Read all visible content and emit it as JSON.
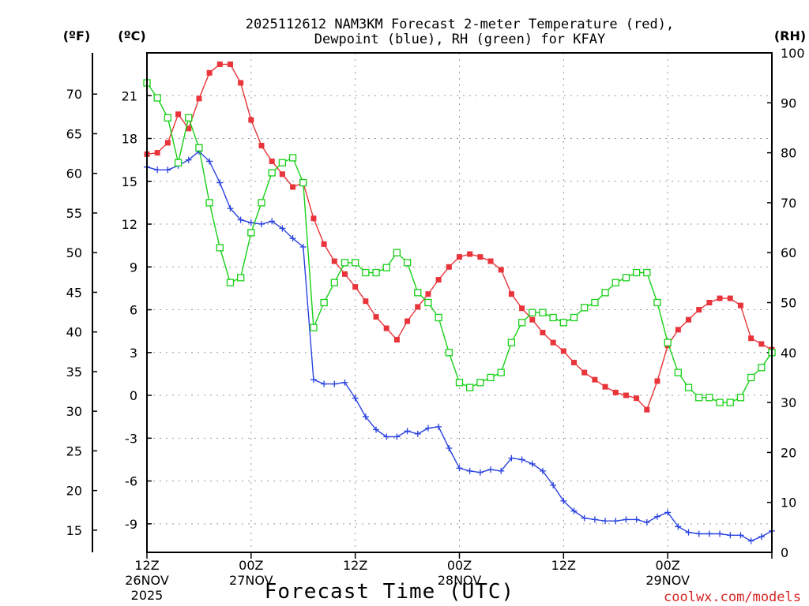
{
  "chart_data": {
    "type": "line",
    "title_line1": "2025112612 NAM3KM Forecast 2-meter Temperature (red),",
    "title_line2": "Dewpoint (blue), RH (green) for KFAY",
    "xlabel": "Forecast Time (UTC)",
    "credit": "coolwx.com/models",
    "unit_f": "(ºF)",
    "unit_c": "(ºC)",
    "unit_rh": "(RH)",
    "x_range_hours": [
      0,
      36
    ],
    "y_celsius_range": [
      -11,
      24
    ],
    "y_rh_range": [
      0,
      100
    ],
    "x_ticks": [
      {
        "hour": 0,
        "line1": "12Z",
        "line2": "26NOV",
        "line3": "2025"
      },
      {
        "hour": 6,
        "line1": "00Z",
        "line2": "27NOV",
        "line3": ""
      },
      {
        "hour": 12,
        "line1": "12Z",
        "line2": "",
        "line3": ""
      },
      {
        "hour": 18,
        "line1": "00Z",
        "line2": "28NOV",
        "line3": ""
      },
      {
        "hour": 24,
        "line1": "12Z",
        "line2": "",
        "line3": ""
      },
      {
        "hour": 30,
        "line1": "00Z",
        "line2": "29NOV",
        "line3": ""
      }
    ],
    "celsius_ticks": [
      "-9",
      "-6",
      "-3",
      "0",
      "3",
      "6",
      "9",
      "12",
      "15",
      "18",
      "21"
    ],
    "fahrenheit_ticks": [
      "15",
      "20",
      "25",
      "30",
      "35",
      "40",
      "45",
      "50",
      "55",
      "60",
      "65",
      "70"
    ],
    "rh_ticks": [
      "0",
      "10",
      "20",
      "30",
      "40",
      "50",
      "60",
      "70",
      "80",
      "90",
      "100"
    ],
    "series": [
      {
        "name": "Temperature",
        "unit": "C",
        "color": "#e8343a",
        "marker": "filled-square",
        "values": [
          16.9,
          17.0,
          17.7,
          19.7,
          18.7,
          20.8,
          22.6,
          23.2,
          23.2,
          21.9,
          19.3,
          17.5,
          16.4,
          15.5,
          14.6,
          14.9,
          12.4,
          10.6,
          9.4,
          8.5,
          7.6,
          6.6,
          5.5,
          4.7,
          3.9,
          5.2,
          6.2,
          7.1,
          8.1,
          9.0,
          9.7,
          9.9,
          9.7,
          9.4,
          8.8,
          7.1,
          6.1,
          5.3,
          4.4,
          3.7,
          3.1,
          2.3,
          1.6,
          1.1,
          0.6,
          0.2,
          0.0,
          -0.2,
          -1.0,
          1.0,
          3.5,
          4.6,
          5.3,
          6.0,
          6.5,
          6.8,
          6.8,
          6.3,
          4.0,
          3.6,
          3.2
        ]
      },
      {
        "name": "Dewpoint",
        "unit": "C",
        "color": "#2942e0",
        "marker": "plus",
        "values": [
          16.0,
          15.8,
          15.8,
          16.1,
          16.5,
          17.1,
          16.4,
          14.9,
          13.1,
          12.3,
          12.1,
          12.0,
          12.2,
          11.7,
          11.0,
          10.4,
          1.1,
          0.8,
          0.8,
          0.9,
          -0.2,
          -1.5,
          -2.4,
          -2.9,
          -2.9,
          -2.5,
          -2.7,
          -2.3,
          -2.2,
          -3.7,
          -5.1,
          -5.3,
          -5.4,
          -5.2,
          -5.3,
          -4.4,
          -4.5,
          -4.8,
          -5.3,
          -6.3,
          -7.4,
          -8.1,
          -8.6,
          -8.7,
          -8.8,
          -8.8,
          -8.7,
          -8.7,
          -8.9,
          -8.5,
          -8.2,
          -9.2,
          -9.6,
          -9.7,
          -9.7,
          -9.7,
          -9.8,
          -9.8,
          -10.2,
          -9.9,
          -9.5
        ]
      },
      {
        "name": "RH",
        "unit": "%",
        "color": "#18d018",
        "marker": "open-square",
        "values": [
          94,
          91,
          87,
          78,
          87,
          81,
          70,
          61,
          54,
          55,
          64,
          70,
          76,
          78,
          79,
          74,
          45,
          50,
          54,
          58,
          58,
          56,
          56,
          57,
          60,
          58,
          52,
          50,
          47,
          40,
          34,
          33,
          34,
          35,
          36,
          42,
          46,
          48,
          48,
          47,
          46,
          47,
          49,
          50,
          52,
          54,
          55,
          56,
          56,
          50,
          42,
          36,
          33,
          31,
          31,
          30,
          30,
          31,
          35,
          37,
          40
        ]
      }
    ]
  }
}
